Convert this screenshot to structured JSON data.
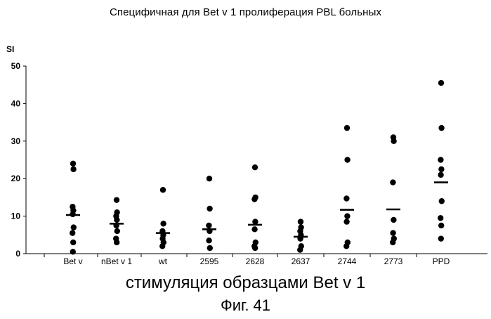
{
  "chart_data": {
    "type": "scatter",
    "title": "Специфичная для Bet v 1 пролиферация PBL больных",
    "xlabel": "стимуляция образцами Bet v 1",
    "ylabel": "SI",
    "caption": "Фиг. 41",
    "ylim": [
      0,
      50
    ],
    "yticks": [
      0,
      10,
      20,
      30,
      40,
      50
    ],
    "grid": false,
    "legend": "none",
    "marker_color": "#000000",
    "categories": [
      "Bet v",
      "nBet v 1",
      "wt",
      "2595",
      "2628",
      "2637",
      "2744",
      "2773",
      "PPD"
    ],
    "series": [
      {
        "values": [
          [
            24,
            22.5,
            12.5,
            11.5,
            10.5,
            7,
            5.5,
            3,
            0.5
          ],
          [
            14.3,
            11,
            10,
            9,
            7.5,
            6,
            4,
            3
          ],
          [
            17,
            8,
            6,
            5,
            4,
            3,
            2
          ],
          [
            20,
            12,
            7.5,
            6,
            3.5,
            1.5
          ],
          [
            23,
            15,
            14.5,
            8.5,
            6.5,
            3,
            2,
            1.5
          ],
          [
            8.5,
            7,
            6,
            5,
            4,
            2,
            1
          ],
          [
            33.5,
            25,
            14.7,
            10,
            8.5,
            3,
            2
          ],
          [
            31,
            30,
            19,
            9,
            5.5,
            4,
            3
          ],
          [
            45.5,
            33.5,
            25,
            22.5,
            21,
            14,
            9.5,
            7.5,
            4
          ]
        ]
      }
    ],
    "medians": [
      10.3,
      8,
      5.5,
      6.5,
      7.7,
      4.5,
      11.7,
      11.8,
      19
    ]
  }
}
